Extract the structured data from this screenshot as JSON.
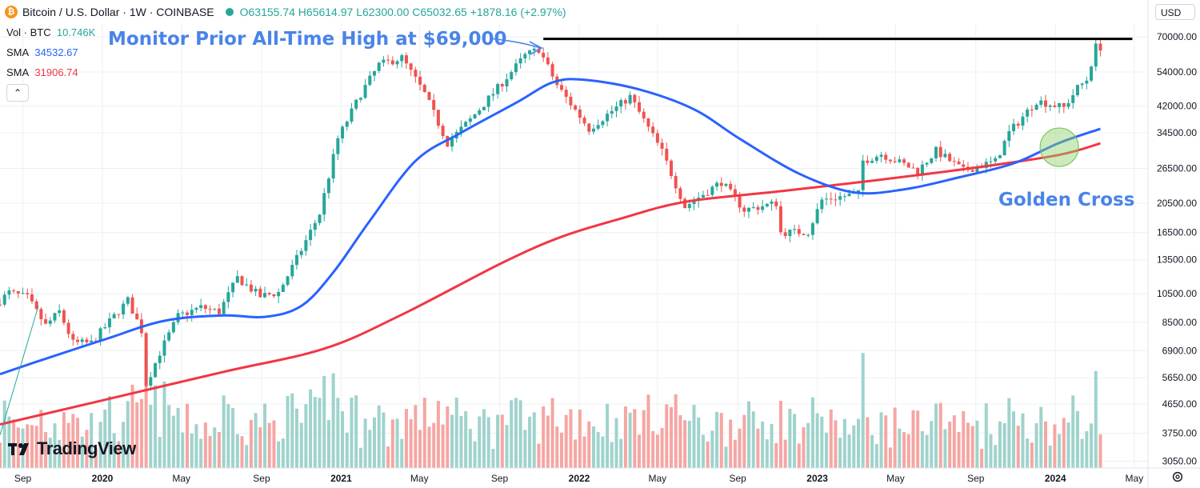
{
  "header": {
    "symbol_title": "Bitcoin / U.S. Dollar · 1W · COINBASE",
    "open": "O63155.74",
    "high": "H65614.97",
    "low": "L62300.00",
    "close": "C65032.65",
    "change": "+1878.16 (+2.97%)",
    "coin_icon": "bitcoin-icon",
    "coin_glyph": "₿",
    "market_status_icon": "market-open-dot-icon"
  },
  "legend": {
    "volume_label": "Vol · BTC",
    "volume_value": "10.746K",
    "sma1_label": "SMA",
    "sma1_value": "34532.67",
    "sma2_label": "SMA",
    "sma2_value": "31906.74",
    "collapse_glyph": "⌃"
  },
  "currency_selector": {
    "value": "USD",
    "icon": "chevron-down-icon"
  },
  "brand": {
    "name": "TradingView"
  },
  "settings_icon": "gear-icon",
  "colors": {
    "up": "#26a69a",
    "down": "#ef5350",
    "volume_up": "#9fd3cc",
    "volume_down": "#f5a6a3",
    "sma_fast": "#2962ff",
    "sma_slow": "#f23645",
    "annotation": "#4a84e8",
    "ath_line": "#000000",
    "golden_cross_circle": "#8fd16a"
  },
  "chart_data": {
    "type": "candlestick",
    "interval": "1W",
    "y_scale": "log",
    "y_ticks": [
      70000,
      54000,
      42000,
      34500,
      26500,
      20500,
      16500,
      13500,
      10500,
      8500,
      6900,
      5650,
      4650,
      3750,
      3050
    ],
    "y_tick_labels": [
      "70000.00",
      "54000.00",
      "42000.00",
      "34500.00",
      "26500.00",
      "20500.00",
      "16500.00",
      "13500.00",
      "10500.00",
      "8500.00",
      "6900.00",
      "5650.00",
      "4650.00",
      "3750.00",
      "3050.00"
    ],
    "x_tick_labels": [
      {
        "date": "2019-09-01",
        "label": "Sep"
      },
      {
        "date": "2020-01-01",
        "label": "2020"
      },
      {
        "date": "2020-05-01",
        "label": "May"
      },
      {
        "date": "2020-09-01",
        "label": "Sep"
      },
      {
        "date": "2021-01-01",
        "label": "2021"
      },
      {
        "date": "2021-05-01",
        "label": "May"
      },
      {
        "date": "2021-09-01",
        "label": "Sep"
      },
      {
        "date": "2022-01-01",
        "label": "2022"
      },
      {
        "date": "2022-05-01",
        "label": "May"
      },
      {
        "date": "2022-09-01",
        "label": "Sep"
      },
      {
        "date": "2023-01-01",
        "label": "2023"
      },
      {
        "date": "2023-05-01",
        "label": "May"
      },
      {
        "date": "2023-09-01",
        "label": "Sep"
      },
      {
        "date": "2024-01-01",
        "label": "2024"
      },
      {
        "date": "2024-05-01",
        "label": "May"
      }
    ],
    "x_range": [
      "2019-07-28",
      "2024-05-22"
    ],
    "y_range": [
      2900,
      77000
    ],
    "price_anchors": [
      [
        "2019-07-28",
        9700
      ],
      [
        "2019-08-18",
        10600
      ],
      [
        "2019-09-15",
        10200
      ],
      [
        "2019-10-13",
        8300
      ],
      [
        "2019-11-03",
        9200
      ],
      [
        "2019-11-24",
        7300
      ],
      [
        "2019-12-22",
        7300
      ],
      [
        "2020-01-26",
        8900
      ],
      [
        "2020-02-16",
        10000
      ],
      [
        "2020-03-08",
        8000
      ],
      [
        "2020-03-15",
        5400
      ],
      [
        "2020-04-05",
        6800
      ],
      [
        "2020-05-03",
        8900
      ],
      [
        "2020-06-07",
        9500
      ],
      [
        "2020-07-05",
        9200
      ],
      [
        "2020-08-02",
        11800
      ],
      [
        "2020-09-06",
        10300
      ],
      [
        "2020-10-04",
        10600
      ],
      [
        "2020-11-01",
        13600
      ],
      [
        "2020-12-06",
        19000
      ],
      [
        "2021-01-03",
        33000
      ],
      [
        "2021-02-07",
        46000
      ],
      [
        "2021-03-07",
        57000
      ],
      [
        "2021-04-11",
        60000
      ],
      [
        "2021-05-16",
        46000
      ],
      [
        "2021-06-20",
        32000
      ],
      [
        "2021-07-25",
        38000
      ],
      [
        "2021-09-05",
        48000
      ],
      [
        "2021-10-17",
        61000
      ],
      [
        "2021-11-07",
        64000
      ],
      [
        "2021-12-05",
        49000
      ],
      [
        "2022-01-23",
        35500
      ],
      [
        "2022-03-27",
        45000
      ],
      [
        "2022-05-15",
        30000
      ],
      [
        "2022-06-19",
        20000
      ],
      [
        "2022-08-14",
        24000
      ],
      [
        "2022-09-18",
        19500
      ],
      [
        "2022-11-06",
        20500
      ],
      [
        "2022-11-13",
        16500
      ],
      [
        "2022-12-25",
        16600
      ],
      [
        "2023-01-15",
        21000
      ],
      [
        "2023-03-12",
        22000
      ],
      [
        "2023-03-19",
        28000
      ],
      [
        "2023-04-16",
        29500
      ],
      [
        "2023-06-11",
        26000
      ],
      [
        "2023-07-09",
        30200
      ],
      [
        "2023-08-20",
        26100
      ],
      [
        "2023-10-08",
        27900
      ],
      [
        "2023-10-29",
        34500
      ],
      [
        "2023-12-10",
        43700
      ],
      [
        "2024-01-21",
        41500
      ],
      [
        "2024-02-11",
        48000
      ],
      [
        "2024-02-25",
        51000
      ],
      [
        "2024-03-10",
        65000
      ]
    ],
    "sma_fast": {
      "label": "SMA",
      "points": [
        [
          "2019-07-28",
          5800
        ],
        [
          "2019-10-06",
          6500
        ],
        [
          "2020-01-05",
          7500
        ],
        [
          "2020-04-05",
          8600
        ],
        [
          "2020-07-05",
          8950
        ],
        [
          "2020-09-06",
          8850
        ],
        [
          "2020-11-01",
          9600
        ],
        [
          "2020-12-20",
          12300
        ],
        [
          "2021-02-14",
          18000
        ],
        [
          "2021-04-25",
          28000
        ],
        [
          "2021-07-04",
          34500
        ],
        [
          "2021-09-26",
          43000
        ],
        [
          "2021-11-21",
          50000
        ],
        [
          "2022-01-09",
          51000
        ],
        [
          "2022-04-03",
          47500
        ],
        [
          "2022-06-26",
          41000
        ],
        [
          "2022-09-04",
          33000
        ],
        [
          "2022-12-04",
          25500
        ],
        [
          "2023-02-26",
          22200
        ],
        [
          "2023-05-14",
          22700
        ],
        [
          "2023-08-06",
          24800
        ],
        [
          "2023-10-29",
          27500
        ],
        [
          "2024-01-07",
          32000
        ],
        [
          "2024-03-10",
          35500
        ]
      ]
    },
    "sma_slow": {
      "label": "SMA",
      "points": [
        [
          "2019-07-28",
          4000
        ],
        [
          "2020-01-05",
          4800
        ],
        [
          "2020-07-05",
          5900
        ],
        [
          "2020-12-06",
          7000
        ],
        [
          "2021-04-04",
          9000
        ],
        [
          "2021-09-05",
          13200
        ],
        [
          "2021-12-05",
          16000
        ],
        [
          "2022-03-06",
          18300
        ],
        [
          "2022-06-12",
          20700
        ],
        [
          "2022-11-06",
          22400
        ],
        [
          "2023-04-02",
          24300
        ],
        [
          "2023-09-03",
          26700
        ],
        [
          "2024-01-07",
          29300
        ],
        [
          "2024-03-10",
          31900
        ]
      ]
    },
    "annotations": [
      {
        "text": "Monitor Prior All-Time High at $69,000",
        "level": 69000,
        "line_from": "2021-11-07",
        "line_to": "2024-04-28"
      },
      {
        "text": "Golden Cross",
        "date": "2024-01-07",
        "price": 31000
      }
    ],
    "volume_pane": {
      "label": "Vol · BTC",
      "latest": "10.746K"
    }
  }
}
